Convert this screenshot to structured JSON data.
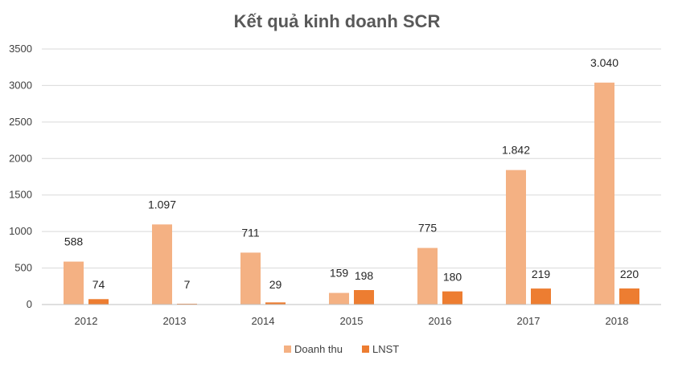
{
  "chart_data": {
    "type": "bar",
    "title": "Kết quả kinh doanh SCR",
    "categories": [
      "2012",
      "2013",
      "2014",
      "2015",
      "2016",
      "2017",
      "2018"
    ],
    "series": [
      {
        "name": "Doanh thu",
        "color": "#F4B183",
        "values": [
          588,
          1097,
          711,
          159,
          775,
          1842,
          3040
        ],
        "labels": [
          "588",
          "1.097",
          "711",
          "159",
          "775",
          "1.842",
          "3.040"
        ]
      },
      {
        "name": "LNST",
        "color": "#ED7D31",
        "values": [
          74,
          7,
          29,
          198,
          180,
          219,
          220
        ],
        "labels": [
          "74",
          "7",
          "29",
          "198",
          "180",
          "219",
          "220"
        ]
      }
    ],
    "yticks": [
      "0",
      "500",
      "1000",
      "1500",
      "2000",
      "2500",
      "3000",
      "3500"
    ],
    "ylim": [
      0,
      3500
    ],
    "grid": true,
    "legend_position": "bottom"
  }
}
